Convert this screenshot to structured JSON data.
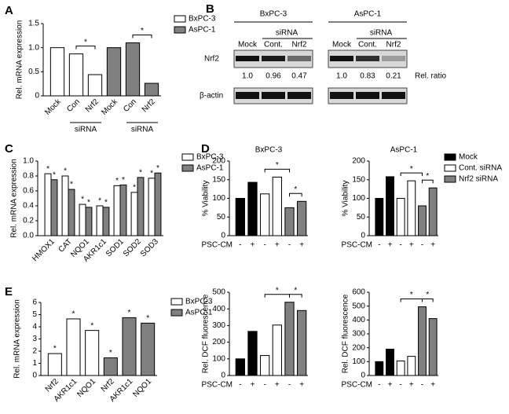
{
  "chart_data": [
    {
      "type": "bar",
      "panel": "A",
      "ylabel": "Rel. mRNA expression",
      "categories": [
        "Mock",
        "Con",
        "Nrf2",
        "Mock",
        "Con",
        "Nrf2"
      ],
      "group_labels": [
        "siRNA",
        "siRNA"
      ],
      "series": [
        {
          "name": "BxPC-3",
          "color": "#ffffff",
          "values": [
            1.0,
            0.87,
            0.44,
            null,
            null,
            null
          ]
        },
        {
          "name": "AsPC-1",
          "color": "#808080",
          "values": [
            null,
            null,
            null,
            1.0,
            1.1,
            0.26
          ]
        }
      ],
      "ylim": [
        0,
        1.5
      ],
      "yticks": [
        0,
        0.5,
        {
          "value": 1,
          "label": "1.0"
        },
        1.5
      ],
      "annotations": [
        "*",
        "*"
      ]
    },
    {
      "type": "bar",
      "panel": "C",
      "ylabel": "Rel. mRNA expression",
      "categories": [
        "HMOX1",
        "CAT",
        "NQO1",
        "AKR1c1",
        "SOD1",
        "SOD2",
        "SOD3"
      ],
      "series": [
        {
          "name": "BxPC-3",
          "color": "#ffffff",
          "values": [
            0.83,
            0.8,
            0.42,
            0.4,
            0.67,
            0.58,
            0.77
          ],
          "annotations": [
            "*",
            "*",
            "*",
            "*",
            "*",
            "*",
            "*"
          ]
        },
        {
          "name": "AsPC-1",
          "color": "#808080",
          "values": [
            0.75,
            0.62,
            0.38,
            0.38,
            0.68,
            0.78,
            0.84
          ],
          "annotations": [
            "*",
            "*",
            "*",
            "*",
            "*",
            "*",
            "*"
          ]
        }
      ],
      "ylim": [
        0,
        1
      ],
      "yticks": [
        {
          "value": 0,
          "label": "0.0"
        },
        0.2,
        0.4,
        0.6,
        0.8,
        {
          "value": 1,
          "label": "1.0"
        }
      ]
    },
    {
      "type": "bar",
      "panel": "E",
      "ylabel": "Rel. mRNA expression",
      "categories": [
        "Nrf2",
        "AKR1c1",
        "NQO1",
        "Nrf2",
        "AKR1c1",
        "NQO1"
      ],
      "series": [
        {
          "name": "BxPC-3",
          "color": "#ffffff",
          "values": [
            1.8,
            4.65,
            3.7,
            null,
            null,
            null
          ],
          "annotations": [
            "*",
            "*",
            "*",
            null,
            null,
            null
          ]
        },
        {
          "name": "AsPC-1",
          "color": "#808080",
          "values": [
            null,
            null,
            null,
            1.45,
            4.75,
            4.3
          ],
          "annotations": [
            null,
            null,
            null,
            "*",
            "*",
            "*"
          ]
        }
      ],
      "ylim": [
        0,
        6
      ],
      "yticks": [
        0,
        1,
        2,
        3,
        4,
        5,
        6
      ]
    },
    {
      "type": "bar",
      "panel": "D",
      "title": "BxPC-3",
      "ylabel": "% Viability",
      "xlabel": "PSC-CM",
      "categories": [
        "-",
        "+",
        "-",
        "+",
        "-",
        "+"
      ],
      "series": [
        {
          "color": "#000000",
          "values": [
            100,
            143,
            null,
            null,
            null,
            null
          ]
        },
        {
          "color": "#ffffff",
          "values": [
            null,
            null,
            112,
            157,
            null,
            null
          ]
        },
        {
          "color": "#808080",
          "values": [
            null,
            null,
            null,
            null,
            75,
            92
          ]
        }
      ],
      "ylim": [
        0,
        200
      ],
      "yticks": [
        0,
        50,
        100,
        150,
        200
      ],
      "annotations": [
        "*",
        "*"
      ]
    },
    {
      "type": "bar",
      "title": "AsPC-1",
      "ylabel": "% Viability",
      "xlabel": "PSC-CM",
      "categories": [
        "-",
        "+",
        "-",
        "+",
        "-",
        "+"
      ],
      "series": [
        {
          "name": "Mock",
          "color": "#000000",
          "values": [
            100,
            158,
            null,
            null,
            null,
            null
          ]
        },
        {
          "name": "Cont. siRNA",
          "color": "#ffffff",
          "values": [
            null,
            null,
            100,
            147,
            null,
            null
          ]
        },
        {
          "name": "Nrf2 siRNA",
          "color": "#808080",
          "values": [
            null,
            null,
            null,
            null,
            80,
            128
          ]
        }
      ],
      "ylim": [
        0,
        200
      ],
      "yticks": [
        0,
        50,
        100,
        150,
        200
      ],
      "annotations": [
        "*",
        "*"
      ]
    },
    {
      "type": "bar",
      "ylabel": "Rel. DCF fluorescence",
      "xlabel": "PSC-CM",
      "categories": [
        "-",
        "+",
        "-",
        "+",
        "-",
        "+"
      ],
      "series": [
        {
          "color": "#000000",
          "values": [
            100,
            265,
            null,
            null,
            null,
            null
          ]
        },
        {
          "color": "#ffffff",
          "values": [
            null,
            null,
            120,
            303,
            null,
            null
          ]
        },
        {
          "color": "#808080",
          "values": [
            null,
            null,
            null,
            null,
            440,
            390
          ]
        }
      ],
      "ylim": [
        0,
        500
      ],
      "yticks": [
        0,
        100,
        200,
        300,
        400,
        500
      ],
      "annotations": [
        "*",
        "*"
      ]
    },
    {
      "type": "bar",
      "ylabel": "Rel. DCF fluorescence",
      "xlabel": "PSC-CM",
      "categories": [
        "-",
        "+",
        "-",
        "+",
        "-",
        "+"
      ],
      "series": [
        {
          "color": "#000000",
          "values": [
            100,
            190,
            null,
            null,
            null,
            null
          ]
        },
        {
          "color": "#ffffff",
          "values": [
            null,
            null,
            105,
            138,
            null,
            null
          ]
        },
        {
          "color": "#808080",
          "values": [
            null,
            null,
            null,
            null,
            495,
            410
          ]
        }
      ],
      "ylim": [
        0,
        600
      ],
      "yticks": [
        0,
        100,
        200,
        300,
        400,
        500,
        600
      ],
      "annotations": [
        "*",
        "*"
      ]
    }
  ],
  "blot": {
    "panel": "B",
    "cell_lines": [
      "BxPC-3",
      "AsPC-1"
    ],
    "sirna": [
      "siRNA",
      "siRNA"
    ],
    "lanes": [
      [
        "Mock",
        "Cont.",
        "Nrf2"
      ],
      [
        "Mock",
        "Cont.",
        "Nrf2"
      ]
    ],
    "rows": [
      "Nrf2",
      "β-actin"
    ],
    "ratios": [
      [
        "1.0",
        "0.96",
        "0.47"
      ],
      [
        "1.0",
        "0.83",
        "0.21"
      ]
    ],
    "ratio_label": "Rel. ratio"
  }
}
